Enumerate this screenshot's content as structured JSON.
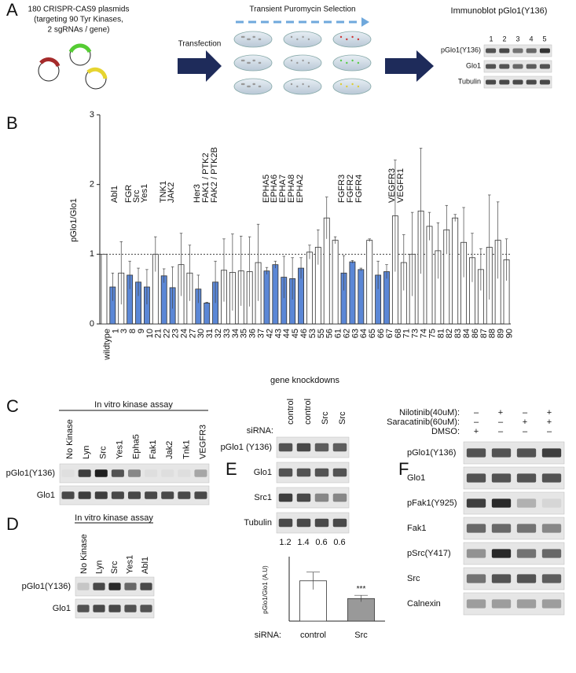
{
  "panel_labels": [
    "A",
    "B",
    "C",
    "D",
    "E",
    "F"
  ],
  "panel_a": {
    "plasmids_text": [
      "180 CRISPR-CAS9 plasmids",
      "(targeting 90 Tyr Kinases,",
      "2 sgRNAs / gene)"
    ],
    "transfection": "Transfection",
    "selection": "Transient Puromycin Selection",
    "immunoblot_title": "Immunoblot pGlo1(Y136)",
    "lanes": [
      "1",
      "2",
      "3",
      "4",
      "5"
    ],
    "rows": [
      "pGlo1(Y136)",
      "Glo1",
      "Tubulin"
    ]
  },
  "chart_data": [
    {
      "type": "bar",
      "y_label": "pGlo1/Glo1",
      "x_label": "gene knockdowns",
      "categories": [
        "wildtype",
        "1",
        "3",
        "8",
        "9",
        "10",
        "21",
        "22",
        "23",
        "24",
        "27",
        "30",
        "31",
        "32",
        "33",
        "34",
        "35",
        "36",
        "37",
        "42",
        "43",
        "44",
        "45",
        "46",
        "53",
        "55",
        "56",
        "61",
        "62",
        "63",
        "64",
        "65",
        "66",
        "67",
        "68",
        "71",
        "73",
        "74",
        "75",
        "81",
        "82",
        "83",
        "84",
        "86",
        "87",
        "88",
        "89",
        "90"
      ],
      "values": [
        1.0,
        0.53,
        0.73,
        0.7,
        0.6,
        0.53,
        1.0,
        0.69,
        0.52,
        0.85,
        0.73,
        0.5,
        0.3,
        0.6,
        0.77,
        0.74,
        0.76,
        0.75,
        0.88,
        0.76,
        0.85,
        0.67,
        0.65,
        0.8,
        1.03,
        1.1,
        1.52,
        1.2,
        0.73,
        0.89,
        0.78,
        1.2,
        0.7,
        0.75,
        1.55,
        0.88,
        1.0,
        1.62,
        1.4,
        1.05,
        1.35,
        1.52,
        1.17,
        0.95,
        0.78,
        1.1,
        1.2,
        0.92
      ],
      "errors": [
        0,
        0.2,
        0.45,
        0.2,
        0.2,
        0.25,
        0.25,
        0.1,
        0.3,
        0.45,
        0.4,
        0.2,
        0.01,
        0.3,
        0.45,
        0.55,
        0.5,
        0.5,
        0.55,
        0.05,
        0.05,
        0.3,
        0.3,
        0.15,
        0.1,
        0.25,
        0.3,
        0.05,
        0.25,
        0.02,
        0.02,
        0.02,
        0.2,
        0.1,
        0.8,
        0.4,
        0.6,
        0.9,
        0.2,
        0.4,
        0.35,
        0.05,
        0.5,
        0.35,
        0.3,
        0.75,
        0.55,
        0.3
      ],
      "colors": [
        "#ffffff",
        "#5b87d6",
        "#ffffff",
        "#5b87d6",
        "#5b87d6",
        "#5b87d6",
        "#ffffff",
        "#5b87d6",
        "#5b87d6",
        "#ffffff",
        "#ffffff",
        "#5b87d6",
        "#5b87d6",
        "#5b87d6",
        "#ffffff",
        "#ffffff",
        "#ffffff",
        "#ffffff",
        "#ffffff",
        "#5b87d6",
        "#5b87d6",
        "#5b87d6",
        "#5b87d6",
        "#5b87d6",
        "#ffffff",
        "#ffffff",
        "#ffffff",
        "#ffffff",
        "#5b87d6",
        "#5b87d6",
        "#5b87d6",
        "#ffffff",
        "#5b87d6",
        "#5b87d6",
        "#ffffff",
        "#ffffff",
        "#ffffff",
        "#ffffff",
        "#ffffff",
        "#ffffff",
        "#ffffff",
        "#ffffff",
        "#ffffff",
        "#ffffff",
        "#ffffff",
        "#ffffff",
        "#ffffff",
        "#ffffff"
      ],
      "ylim": [
        0,
        3
      ],
      "yticks": [
        0,
        1,
        2,
        3
      ],
      "reference_line": 1,
      "annotations": [
        "Abl1",
        "FGR",
        "Src",
        "Yes1",
        "TNK1",
        "JAK2",
        "Her3",
        "FAK1 / PTK2",
        "FAK2 / PTK2B",
        "EPHA5",
        "EPHA6",
        "EPHA7",
        "EPHA8",
        "EPHA2",
        "FGFR3",
        "FGFR2",
        "FGFR4",
        "VEGFR3",
        "VEGFR1"
      ]
    },
    {
      "type": "bar",
      "y_label": "pGlo1/Glo1 (A.U)",
      "x_label": "siRNA:",
      "categories": [
        "control",
        "Src"
      ],
      "values": [
        1.25,
        0.7
      ],
      "errors": [
        0.27,
        0.1
      ],
      "colors": [
        "#ffffff",
        "#999999"
      ],
      "ylim": [
        0,
        2
      ],
      "annotation": "***"
    }
  ],
  "panel_c": {
    "title": "In vitro kinase assay",
    "lanes": [
      "No Kinase",
      "Lyn",
      "Src",
      "Yes1",
      "Epha5",
      "Fak1",
      "Jak2",
      "Tnk1",
      "VEGFR3"
    ],
    "rows": [
      "pGlo1(Y136)",
      "Glo1"
    ]
  },
  "panel_d": {
    "title": "In vitro kinase assay",
    "lanes": [
      "No Kinase",
      "Lyn",
      "Src",
      "Yes1",
      "Abl1"
    ],
    "rows": [
      "pGlo1(Y136)",
      "Glo1"
    ]
  },
  "panel_e": {
    "lane_label": "siRNA:",
    "lanes": [
      "control",
      "control",
      "Src",
      "Src"
    ],
    "rows": [
      "pGlo1 (Y136)",
      "Glo1",
      "Src1",
      "Tubulin"
    ],
    "quantification": [
      "1.2",
      "1.4",
      "0.6",
      "0.6"
    ]
  },
  "panel_f": {
    "treatments": [
      {
        "label": "Nilotinib(40uM):",
        "marks": [
          "–",
          "+",
          "–",
          "+"
        ]
      },
      {
        "label": "Saracatinib(60uM):",
        "marks": [
          "–",
          "–",
          "+",
          "+"
        ]
      },
      {
        "label": "DMSO:",
        "marks": [
          "+",
          "–",
          "–",
          "–"
        ]
      }
    ],
    "rows": [
      "pGlo1(Y136)",
      "Glo1",
      "pFak1(Y925)",
      "Fak1",
      "pSrc(Y417)",
      "Src",
      "Calnexin"
    ]
  }
}
